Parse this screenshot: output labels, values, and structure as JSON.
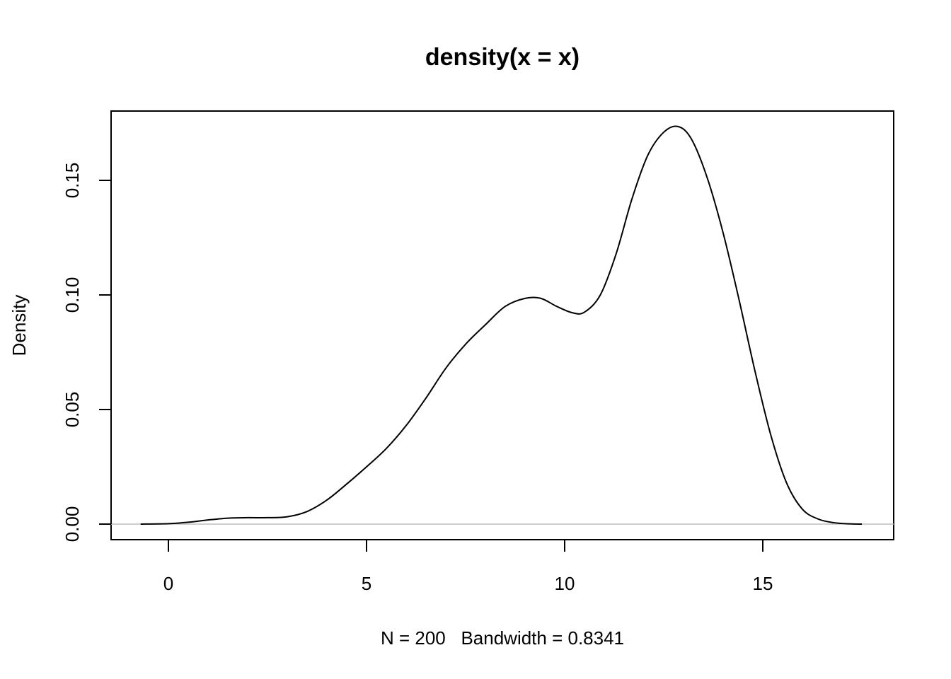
{
  "chart_data": {
    "type": "line",
    "title": "density(x = x)",
    "xlabel": "N = 200   Bandwidth = 0.8341",
    "ylabel": "Density",
    "xlim": [
      -1.4,
      18.3
    ],
    "ylim": [
      -0.007,
      0.18
    ],
    "xticks": [
      0,
      5,
      10,
      15
    ],
    "xtick_labels": [
      "0",
      "5",
      "10",
      "15"
    ],
    "yticks": [
      0.0,
      0.05,
      0.1,
      0.15
    ],
    "ytick_labels": [
      "0.00",
      "0.05",
      "0.10",
      "0.15"
    ],
    "grid": false,
    "baseline": {
      "y": 0,
      "color": "#bebebe"
    },
    "series": [
      {
        "name": "density",
        "color": "#000000",
        "x": [
          -0.7,
          0,
          0.5,
          1.0,
          1.5,
          2.0,
          2.5,
          3.0,
          3.5,
          4.0,
          4.5,
          5.0,
          5.5,
          6.0,
          6.5,
          7.0,
          7.5,
          8.0,
          8.5,
          9.0,
          9.4,
          9.8,
          10.2,
          10.5,
          10.9,
          11.3,
          11.7,
          12.1,
          12.5,
          12.86,
          13.2,
          13.6,
          14.0,
          14.4,
          14.8,
          15.2,
          15.6,
          16.0,
          16.4,
          16.8,
          17.2,
          17.5
        ],
        "y": [
          0.0,
          0.0002,
          0.0008,
          0.0018,
          0.0026,
          0.0028,
          0.0028,
          0.0032,
          0.0055,
          0.0105,
          0.0175,
          0.025,
          0.033,
          0.043,
          0.055,
          0.068,
          0.0785,
          0.087,
          0.095,
          0.0985,
          0.0985,
          0.095,
          0.0922,
          0.0925,
          0.1,
          0.118,
          0.142,
          0.161,
          0.171,
          0.1735,
          0.168,
          0.151,
          0.127,
          0.098,
          0.067,
          0.039,
          0.018,
          0.0065,
          0.0022,
          0.0006,
          0.0001,
          0.0
        ]
      }
    ]
  }
}
